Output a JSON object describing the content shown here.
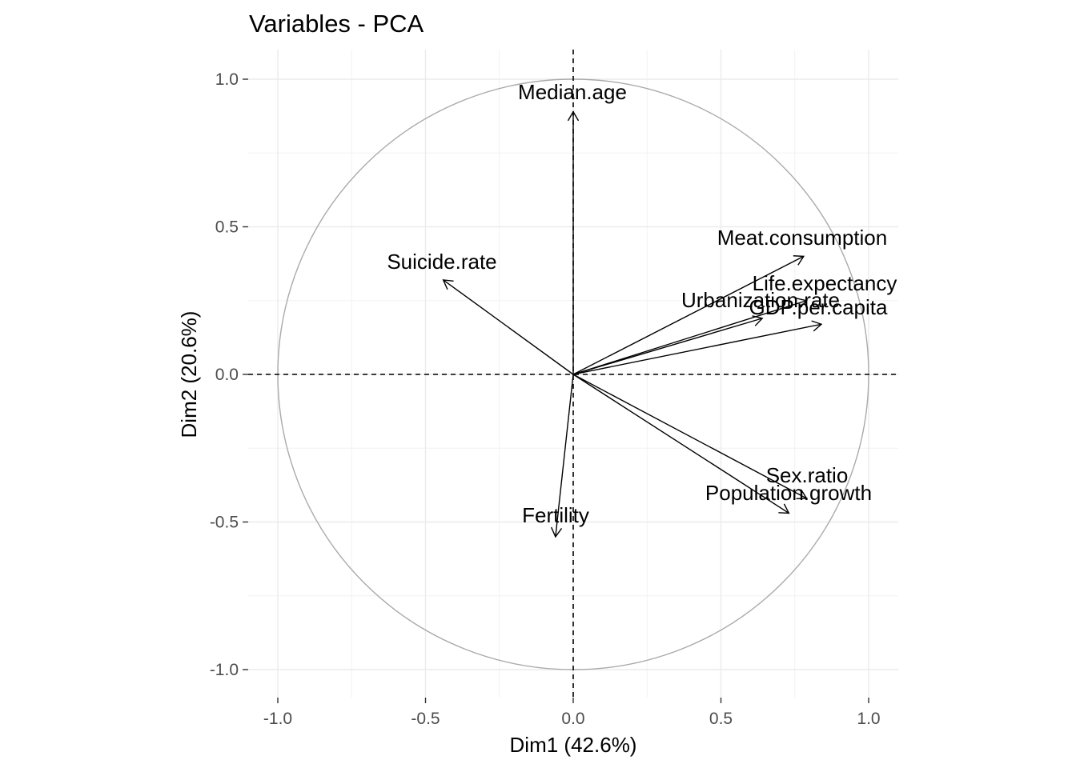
{
  "chart_data": {
    "type": "scatter",
    "title": "Variables - PCA",
    "xlabel": "Dim1 (42.6%)",
    "ylabel": "Dim2 (20.6%)",
    "xlim": [
      -1.1,
      1.1
    ],
    "ylim": [
      -1.1,
      1.1
    ],
    "xticks": [
      -1.0,
      -0.5,
      0.0,
      0.5,
      1.0
    ],
    "xtick_labels": [
      "-1.0",
      "-0.5",
      "0.0",
      "0.5",
      "1.0"
    ],
    "yticks": [
      -1.0,
      -0.5,
      0.0,
      0.5,
      1.0
    ],
    "ytick_labels": [
      "-1.0",
      "-0.5",
      "0.0",
      "0.5",
      "1.0"
    ],
    "grid": true,
    "unit_circle": true,
    "variables": [
      {
        "name": "Median.age",
        "x": 0.0,
        "y": 0.89
      },
      {
        "name": "Meat.consumption",
        "x": 0.78,
        "y": 0.4
      },
      {
        "name": "Suicide.rate",
        "x": -0.44,
        "y": 0.32
      },
      {
        "name": "Life.expectancy",
        "x": 0.79,
        "y": 0.25
      },
      {
        "name": "Urbanization.rate",
        "x": 0.64,
        "y": 0.19
      },
      {
        "name": "GDP.per.capita",
        "x": 0.84,
        "y": 0.17
      },
      {
        "name": "Sex.ratio",
        "x": 0.79,
        "y": -0.42
      },
      {
        "name": "Population.growth",
        "x": 0.73,
        "y": -0.47
      },
      {
        "name": "Fertility",
        "x": -0.06,
        "y": -0.55
      }
    ]
  }
}
